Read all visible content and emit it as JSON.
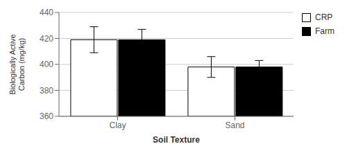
{
  "chart_data": {
    "type": "bar",
    "categories": [
      "Clay",
      "Sand"
    ],
    "series": [
      {
        "name": "CRP",
        "color": "#ffffff",
        "values": [
          419,
          398
        ],
        "errors": [
          10,
          8
        ]
      },
      {
        "name": "Farm",
        "color": "#000000",
        "values": [
          419,
          398
        ],
        "errors": [
          8,
          5
        ]
      }
    ],
    "xlabel": "Soil Texture",
    "ylabel": "Biologically Active\nCarbon (mg/kg)",
    "ylim": [
      360,
      440
    ],
    "yticks": [
      360,
      380,
      400,
      420,
      440
    ],
    "grid": true,
    "legend": "right"
  }
}
